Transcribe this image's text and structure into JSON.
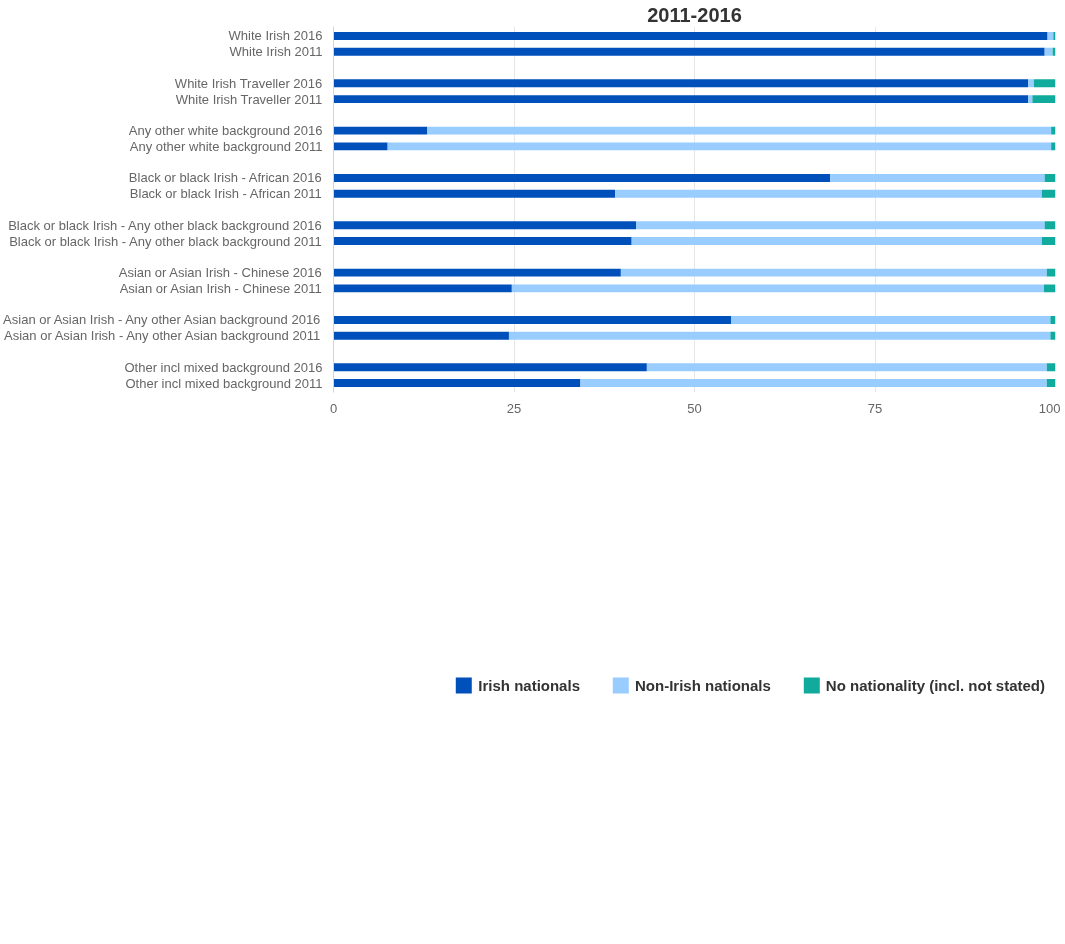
{
  "chart_data": {
    "type": "bar",
    "title": "2011-2016",
    "orientation": "horizontal",
    "stacked": true,
    "categories": [
      "White Irish 2016",
      "White Irish 2011",
      null,
      "White Irish Traveller 2016",
      "White Irish Traveller 2011",
      null,
      "Any other white background 2016",
      "Any other white background 2011",
      null,
      "Black or black Irish - African 2016",
      "Black or black Irish - African 2011",
      null,
      "Black or black Irish - Any other black background 2016",
      "Black or black Irish - Any other black background 2011",
      null,
      "Asian or Asian Irish - Chinese 2016",
      "Asian or Asian Irish - Chinese 2011",
      null,
      "Asian or Asian Irish - Any other Asian background 2016",
      "Asian or Asian Irish - Any other Asian background 2011",
      null,
      "Other incl mixed background 2016",
      "Other incl mixed background 2011"
    ],
    "series": [
      {
        "name": "Irish nationals",
        "color": "#0050bb",
        "values": [
          98.9,
          98.5,
          null,
          96.2,
          96.2,
          null,
          13.0,
          7.5,
          null,
          68.8,
          39.0,
          null,
          41.9,
          41.3,
          null,
          39.8,
          24.7,
          null,
          55.1,
          24.3,
          null,
          43.4,
          34.2
        ]
      },
      {
        "name": "Non-Irish nationals",
        "color": "#99ccff",
        "values": [
          0.8,
          1.1,
          null,
          0.8,
          0.6,
          null,
          86.4,
          91.9,
          null,
          29.7,
          59.1,
          null,
          56.6,
          56.8,
          null,
          59.0,
          73.7,
          null,
          44.2,
          75.0,
          null,
          55.4,
          64.6
        ]
      },
      {
        "name": "No nationality (incl. not stated)",
        "color": "#10ab9c",
        "values": [
          0.3,
          0.4,
          null,
          3.0,
          3.2,
          null,
          0.6,
          0.6,
          null,
          1.5,
          1.9,
          null,
          1.5,
          1.9,
          null,
          1.2,
          1.6,
          null,
          0.7,
          0.7,
          null,
          1.2,
          1.2
        ]
      }
    ],
    "xlim": [
      0,
      100
    ],
    "xticks": [
      0,
      25,
      50,
      75,
      100
    ],
    "grid": "x",
    "legend": "bottom"
  }
}
